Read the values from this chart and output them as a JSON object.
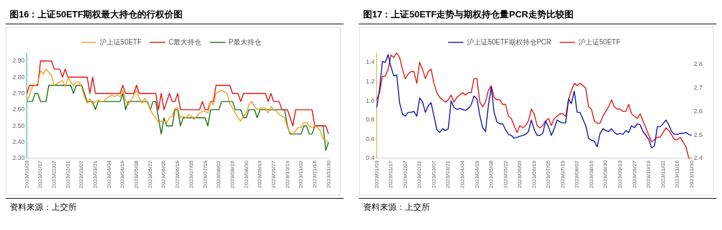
{
  "chart_data": [
    {
      "type": "line",
      "title": "图16：上证50ETF期权最大持仓的行权价图",
      "categories": [
        "2023/01/03",
        null,
        null,
        null,
        null,
        "2023/01/17",
        null,
        null,
        null,
        null,
        "2023/02/07",
        null,
        null,
        null,
        null,
        "2023/02/21",
        null,
        null,
        null,
        null,
        "2023/03/07",
        null,
        null,
        null,
        null,
        "2023/03/21",
        null,
        null,
        null,
        null,
        "2023/04/04",
        null,
        null,
        null,
        null,
        "2023/04/19",
        null,
        null,
        null,
        null,
        "2023/05/08",
        null,
        null,
        null,
        null,
        "2023/05/22",
        null,
        null,
        null,
        null,
        "2023/06/05",
        null,
        null,
        null,
        null,
        "2023/06/19",
        null,
        null,
        null,
        null,
        "2023/07/05",
        null,
        null,
        null,
        null,
        "2023/07/19",
        null,
        null,
        null,
        null,
        "2023/08/02",
        null,
        null,
        null,
        null,
        "2023/08/16",
        null,
        null,
        null,
        null,
        "2023/08/30",
        null,
        null,
        null,
        null,
        "2023/09/13",
        null,
        null,
        null,
        null,
        "2023/09/27",
        null,
        null,
        null,
        null,
        "2023/10/19",
        null,
        null,
        null,
        null,
        "2023/11/02",
        null,
        null,
        null,
        null,
        "2023/11/16",
        null,
        null,
        null,
        null,
        "2023/11/30"
      ],
      "series": [
        {
          "name": "沪上证50ETF",
          "color": "#f0a020",
          "values": [
            2.65,
            2.69,
            2.74,
            2.75,
            2.76,
            2.84,
            2.82,
            2.85,
            2.83,
            2.81,
            2.75,
            2.76,
            2.77,
            2.78,
            2.74,
            2.8,
            2.77,
            2.75,
            2.77,
            2.77,
            2.74,
            2.68,
            2.64,
            2.67,
            2.63,
            2.65,
            2.66,
            2.65,
            2.65,
            2.67,
            2.68,
            2.69,
            2.68,
            2.69,
            2.68,
            2.72,
            2.66,
            2.63,
            2.66,
            2.69,
            2.72,
            2.67,
            2.64,
            2.67,
            2.64,
            2.6,
            2.57,
            2.55,
            2.52,
            2.53,
            2.53,
            2.52,
            2.55,
            2.56,
            2.61,
            2.61,
            2.55,
            2.56,
            2.55,
            2.57,
            2.56,
            2.54,
            2.56,
            2.58,
            2.59,
            2.59,
            2.58,
            2.65,
            2.63,
            2.7,
            2.71,
            2.72,
            2.71,
            2.7,
            2.64,
            2.61,
            2.58,
            2.55,
            2.53,
            2.56,
            2.58,
            2.63,
            2.65,
            2.62,
            2.6,
            2.61,
            2.61,
            2.61,
            2.58,
            2.62,
            2.6,
            2.59,
            2.57,
            2.56,
            2.55,
            2.49,
            2.46,
            2.45,
            2.47,
            2.49,
            2.49,
            2.52,
            2.52,
            2.5,
            2.49,
            2.5,
            2.49,
            2.47,
            2.42,
            2.41,
            2.4
          ]
        },
        {
          "name": "C最大持仓",
          "color": "#e01010",
          "values": [
            2.7,
            2.75,
            2.75,
            2.75,
            2.75,
            2.9,
            2.9,
            2.9,
            2.9,
            2.9,
            2.85,
            2.85,
            2.85,
            2.8,
            2.85,
            2.8,
            2.8,
            2.8,
            2.8,
            2.8,
            2.8,
            2.8,
            2.8,
            2.7,
            2.8,
            2.7,
            2.7,
            2.7,
            2.7,
            2.7,
            2.7,
            2.7,
            2.7,
            2.7,
            2.7,
            2.75,
            2.7,
            2.7,
            2.7,
            2.7,
            2.75,
            2.7,
            2.7,
            2.7,
            2.7,
            2.7,
            2.7,
            2.7,
            2.6,
            2.7,
            2.6,
            2.65,
            2.7,
            2.65,
            2.65,
            2.7,
            2.6,
            2.6,
            2.6,
            2.6,
            2.6,
            2.6,
            2.6,
            2.6,
            2.65,
            2.6,
            2.6,
            2.65,
            2.65,
            2.75,
            2.75,
            2.75,
            2.75,
            2.75,
            2.75,
            2.7,
            2.7,
            2.7,
            2.65,
            2.7,
            2.7,
            2.7,
            2.7,
            2.7,
            2.7,
            2.7,
            2.7,
            2.7,
            2.65,
            2.7,
            2.65,
            2.65,
            2.65,
            2.6,
            2.6,
            2.6,
            2.55,
            2.5,
            2.6,
            2.6,
            2.6,
            2.6,
            2.6,
            2.6,
            2.6,
            2.5,
            2.5,
            2.5,
            2.5,
            2.5,
            2.45
          ]
        },
        {
          "name": "P最大持仓",
          "color": "#1a6e1a",
          "values": [
            2.65,
            2.65,
            2.65,
            2.7,
            2.7,
            2.65,
            2.65,
            2.65,
            2.75,
            2.75,
            2.75,
            2.75,
            2.75,
            2.75,
            2.75,
            2.75,
            2.75,
            2.7,
            2.75,
            2.75,
            2.75,
            2.7,
            2.65,
            2.65,
            2.65,
            2.6,
            2.65,
            2.65,
            2.65,
            2.65,
            2.65,
            2.65,
            2.65,
            2.65,
            2.65,
            2.7,
            2.6,
            2.65,
            2.65,
            2.65,
            2.65,
            2.65,
            2.65,
            2.65,
            2.65,
            2.6,
            2.65,
            2.65,
            2.55,
            2.45,
            2.55,
            2.5,
            2.5,
            2.5,
            2.6,
            2.6,
            2.5,
            2.55,
            2.55,
            2.55,
            2.55,
            2.55,
            2.55,
            2.55,
            2.55,
            2.55,
            2.5,
            2.6,
            2.6,
            2.6,
            2.6,
            2.65,
            2.65,
            2.65,
            2.65,
            2.65,
            2.6,
            2.6,
            2.6,
            2.55,
            2.55,
            2.6,
            2.6,
            2.6,
            2.55,
            2.6,
            2.6,
            2.6,
            2.6,
            2.6,
            2.6,
            2.6,
            2.6,
            2.6,
            2.6,
            2.5,
            2.45,
            2.45,
            2.45,
            2.45,
            2.45,
            2.5,
            2.5,
            2.45,
            2.45,
            2.5,
            2.5,
            2.5,
            2.5,
            2.35,
            2.4
          ]
        }
      ],
      "ylim": [
        2.3,
        2.95
      ],
      "yticks": [
        {
          "value": 2.3,
          "label": "2.30"
        },
        {
          "value": 2.4,
          "label": "2.40"
        },
        {
          "value": 2.5,
          "label": "2.50"
        },
        {
          "value": 2.6,
          "label": "2.60"
        },
        {
          "value": 2.7,
          "label": "2.70"
        },
        {
          "value": 2.8,
          "label": "2.80"
        },
        {
          "value": 2.9,
          "label": "2.90"
        }
      ],
      "legend": "top",
      "grid": false,
      "annotations": [
        "资料来源：上交所"
      ]
    },
    {
      "type": "line",
      "title": "图17：上证50ETF走势与期权持仓量PCR走势比较图",
      "categories": [
        "2023/01/03",
        null,
        null,
        null,
        null,
        "2023/01/17",
        null,
        null,
        null,
        null,
        "2023/02/07",
        null,
        null,
        null,
        null,
        "2023/02/21",
        null,
        null,
        null,
        null,
        "2023/03/07",
        null,
        null,
        null,
        null,
        "2023/03/21",
        null,
        null,
        null,
        null,
        "2023/04/04",
        null,
        null,
        null,
        null,
        "2023/04/19",
        null,
        null,
        null,
        null,
        "2023/05/08",
        null,
        null,
        null,
        null,
        "2023/05/22",
        null,
        null,
        null,
        null,
        "2023/06/05",
        null,
        null,
        null,
        null,
        "2023/06/19",
        null,
        null,
        null,
        null,
        "2023/07/05",
        null,
        null,
        null,
        null,
        "2023/07/19",
        null,
        null,
        null,
        null,
        "2023/08/02",
        null,
        null,
        null,
        null,
        "2023/08/16",
        null,
        null,
        null,
        null,
        "2023/08/30",
        null,
        null,
        null,
        null,
        "2023/09/13",
        null,
        null,
        null,
        null,
        "2023/09/27",
        null,
        null,
        null,
        null,
        "2023/10/19",
        null,
        null,
        null,
        null,
        "2023/11/02",
        null,
        null,
        null,
        null,
        "2023/11/16",
        null,
        null,
        null,
        null,
        "2023/11/30"
      ],
      "series": [
        {
          "name": "沪上证50ETF期权持仓PCR",
          "color": "#1414a8",
          "values": [
            0.93,
            1.12,
            1.41,
            1.4,
            1.48,
            1.35,
            1.26,
            1.27,
            0.98,
            0.86,
            0.84,
            0.88,
            0.88,
            0.89,
            0.84,
            1.03,
            0.99,
            0.88,
            0.95,
            0.98,
            0.84,
            0.7,
            0.67,
            0.71,
            0.69,
            0.71,
            1.0,
            0.93,
            0.91,
            0.92,
            0.91,
            0.9,
            0.92,
            0.96,
            1.05,
            1.02,
            0.85,
            0.72,
            0.68,
            0.95,
            1.14,
            0.88,
            0.78,
            0.76,
            0.76,
            0.7,
            0.65,
            0.64,
            0.61,
            0.62,
            0.63,
            0.64,
            0.65,
            0.68,
            0.8,
            0.7,
            0.64,
            0.64,
            0.66,
            0.79,
            0.73,
            0.64,
            0.71,
            0.8,
            0.78,
            0.77,
            0.77,
            1.02,
            0.97,
            1.1,
            0.88,
            0.88,
            0.81,
            0.74,
            0.61,
            0.59,
            0.58,
            0.52,
            0.66,
            0.71,
            0.69,
            0.68,
            0.71,
            0.67,
            0.65,
            0.66,
            0.65,
            0.69,
            0.67,
            0.74,
            0.72,
            0.76,
            0.75,
            0.68,
            0.64,
            0.6,
            0.51,
            0.53,
            0.73,
            0.73,
            0.76,
            0.8,
            0.75,
            0.68,
            0.65,
            0.65,
            0.66,
            0.66,
            0.67,
            0.65,
            0.64
          ]
        },
        {
          "name": "沪上证50ETF",
          "color": "#e01818",
          "axis": "y2",
          "values": [
            2.65,
            2.68,
            2.75,
            2.75,
            2.78,
            2.84,
            2.83,
            2.85,
            2.83,
            2.78,
            2.74,
            2.76,
            2.77,
            2.77,
            2.72,
            2.81,
            2.78,
            2.74,
            2.77,
            2.78,
            2.72,
            2.68,
            2.66,
            2.65,
            2.64,
            2.65,
            2.67,
            2.64,
            2.66,
            2.67,
            2.68,
            2.67,
            2.68,
            2.68,
            2.74,
            2.74,
            2.64,
            2.62,
            2.64,
            2.69,
            2.71,
            2.66,
            2.65,
            2.65,
            2.63,
            2.63,
            2.58,
            2.57,
            2.54,
            2.51,
            2.54,
            2.53,
            2.54,
            2.56,
            2.61,
            2.59,
            2.54,
            2.53,
            2.54,
            2.56,
            2.57,
            2.54,
            2.57,
            2.58,
            2.59,
            2.59,
            2.58,
            2.65,
            2.69,
            2.72,
            2.71,
            2.72,
            2.71,
            2.7,
            2.62,
            2.61,
            2.56,
            2.55,
            2.55,
            2.58,
            2.6,
            2.62,
            2.65,
            2.62,
            2.61,
            2.61,
            2.6,
            2.6,
            2.63,
            2.59,
            2.58,
            2.57,
            2.59,
            2.56,
            2.53,
            2.5,
            2.47,
            2.48,
            2.49,
            2.49,
            2.51,
            2.53,
            2.52,
            2.5,
            2.48,
            2.48,
            2.49,
            2.47,
            2.45,
            2.4,
            2.4
          ]
        }
      ],
      "ylim": [
        0.4,
        1.5
      ],
      "yticks": [
        0.4,
        0.6,
        0.8,
        {
          "value": 1,
          "label": "1.0"
        },
        1.2,
        1.4
      ],
      "y2lim": [
        2.4,
        2.85
      ],
      "y2ticks": [
        2.4,
        2.5,
        2.6,
        2.7,
        2.8
      ],
      "legend": "top",
      "grid": false,
      "annotations": [
        "资料来源：上交所"
      ]
    }
  ]
}
